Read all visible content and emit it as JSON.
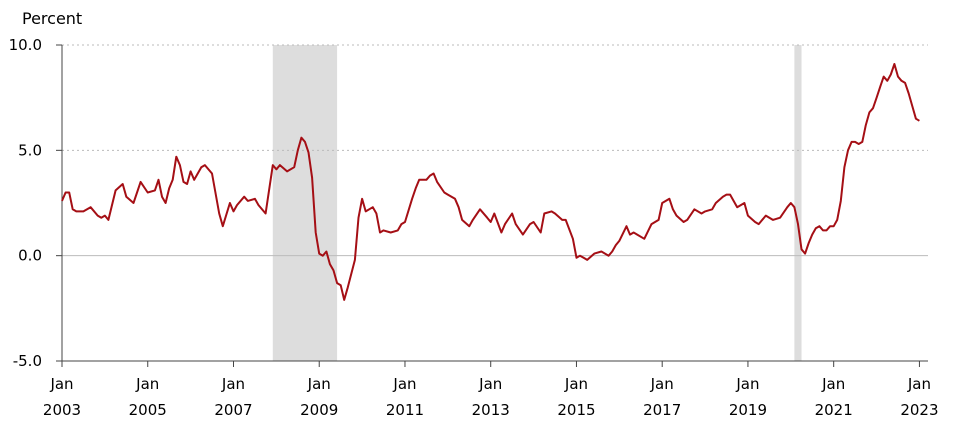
{
  "chart_data": {
    "type": "line",
    "ylabel": "Percent",
    "ylim": [
      -5.0,
      10.0
    ],
    "yticks": [
      {
        "value": -5.0,
        "label": "-5.0"
      },
      {
        "value": 0.0,
        "label": "0.0"
      },
      {
        "value": 5.0,
        "label": "5.0"
      },
      {
        "value": 10.0,
        "label": "10.0"
      }
    ],
    "xlim": [
      2003.0,
      2023.2
    ],
    "xticks": [
      {
        "value": 2003,
        "month": "Jan",
        "year": "2003"
      },
      {
        "value": 2005,
        "month": "Jan",
        "year": "2005"
      },
      {
        "value": 2007,
        "month": "Jan",
        "year": "2007"
      },
      {
        "value": 2009,
        "month": "Jan",
        "year": "2009"
      },
      {
        "value": 2011,
        "month": "Jan",
        "year": "2011"
      },
      {
        "value": 2013,
        "month": "Jan",
        "year": "2013"
      },
      {
        "value": 2015,
        "month": "Jan",
        "year": "2015"
      },
      {
        "value": 2017,
        "month": "Jan",
        "year": "2017"
      },
      {
        "value": 2019,
        "month": "Jan",
        "year": "2019"
      },
      {
        "value": 2021,
        "month": "Jan",
        "year": "2021"
      },
      {
        "value": 2023,
        "month": "Jan",
        "year": "2023"
      }
    ],
    "grid": "horizontal-dotted",
    "recessions": [
      [
        2007.917,
        2009.417
      ],
      [
        2020.083,
        2020.25
      ]
    ],
    "line_color": "#a50f15",
    "recession_color": "#dddddd",
    "series": [
      {
        "x": [
          2003.0,
          2003.083,
          2003.167,
          2003.25,
          2003.333,
          2003.5,
          2003.667,
          2003.833,
          2003.917,
          2004.0,
          2004.083,
          2004.25,
          2004.417,
          2004.5,
          2004.667,
          2004.833,
          2005.0,
          2005.167,
          2005.25,
          2005.333,
          2005.417,
          2005.5,
          2005.583,
          2005.667,
          2005.75,
          2005.833,
          2005.917,
          2006.0,
          2006.083,
          2006.25,
          2006.333,
          2006.5,
          2006.667,
          2006.75,
          2006.917,
          2007.0,
          2007.083,
          2007.25,
          2007.333,
          2007.5,
          2007.583,
          2007.75,
          2007.917,
          2008.0,
          2008.083,
          2008.25,
          2008.417,
          2008.5,
          2008.583,
          2008.667,
          2008.75,
          2008.833,
          2008.917,
          2009.0,
          2009.083,
          2009.167,
          2009.25,
          2009.333,
          2009.417,
          2009.5,
          2009.583,
          2009.667,
          2009.833,
          2009.917,
          2010.0,
          2010.083,
          2010.25,
          2010.333,
          2010.417,
          2010.5,
          2010.667,
          2010.833,
          2010.917,
          2011.0,
          2011.167,
          2011.25,
          2011.333,
          2011.417,
          2011.5,
          2011.583,
          2011.667,
          2011.75,
          2011.917,
          2012.0,
          2012.167,
          2012.25,
          2012.333,
          2012.5,
          2012.583,
          2012.75,
          2012.917,
          2013.0,
          2013.083,
          2013.25,
          2013.333,
          2013.5,
          2013.583,
          2013.75,
          2013.917,
          2014.0,
          2014.167,
          2014.25,
          2014.417,
          2014.5,
          2014.667,
          2014.75,
          2014.917,
          2015.0,
          2015.083,
          2015.167,
          2015.25,
          2015.417,
          2015.583,
          2015.75,
          2015.833,
          2015.917,
          2016.0,
          2016.167,
          2016.25,
          2016.333,
          2016.417,
          2016.583,
          2016.75,
          2016.917,
          2017.0,
          2017.167,
          2017.25,
          2017.333,
          2017.5,
          2017.583,
          2017.75,
          2017.917,
          2018.0,
          2018.167,
          2018.25,
          2018.417,
          2018.5,
          2018.583,
          2018.75,
          2018.917,
          2019.0,
          2019.167,
          2019.25,
          2019.417,
          2019.583,
          2019.75,
          2019.917,
          2020.0,
          2020.083,
          2020.167,
          2020.25,
          2020.333,
          2020.417,
          2020.5,
          2020.583,
          2020.667,
          2020.75,
          2020.833,
          2020.917,
          2021.0,
          2021.083,
          2021.167,
          2021.25,
          2021.333,
          2021.417,
          2021.5,
          2021.583,
          2021.667,
          2021.75,
          2021.833,
          2021.917,
          2022.0,
          2022.083,
          2022.167,
          2022.25,
          2022.333,
          2022.417,
          2022.5,
          2022.583,
          2022.667,
          2022.75,
          2022.833,
          2022.917,
          2023.0
        ],
        "y": [
          2.6,
          3.0,
          3.0,
          2.2,
          2.1,
          2.1,
          2.3,
          1.9,
          1.8,
          1.9,
          1.7,
          3.1,
          3.4,
          2.8,
          2.5,
          3.5,
          3.0,
          3.1,
          3.6,
          2.8,
          2.5,
          3.2,
          3.6,
          4.7,
          4.3,
          3.5,
          3.4,
          4.0,
          3.6,
          4.2,
          4.3,
          3.9,
          2.0,
          1.4,
          2.5,
          2.1,
          2.4,
          2.8,
          2.6,
          2.7,
          2.4,
          2.0,
          4.3,
          4.1,
          4.3,
          4.0,
          4.2,
          5.0,
          5.6,
          5.4,
          4.9,
          3.7,
          1.1,
          0.1,
          0.0,
          0.2,
          -0.4,
          -0.7,
          -1.3,
          -1.4,
          -2.1,
          -1.5,
          -0.2,
          1.8,
          2.7,
          2.1,
          2.3,
          2.0,
          1.1,
          1.2,
          1.1,
          1.2,
          1.5,
          1.6,
          2.7,
          3.2,
          3.6,
          3.6,
          3.6,
          3.8,
          3.9,
          3.5,
          3.0,
          2.9,
          2.7,
          2.3,
          1.7,
          1.4,
          1.7,
          2.2,
          1.8,
          1.6,
          2.0,
          1.1,
          1.5,
          2.0,
          1.5,
          1.0,
          1.5,
          1.6,
          1.1,
          2.0,
          2.1,
          2.0,
          1.7,
          1.7,
          0.8,
          -0.1,
          0.0,
          -0.1,
          -0.2,
          0.1,
          0.2,
          0.0,
          0.2,
          0.5,
          0.7,
          1.4,
          1.0,
          1.1,
          1.0,
          0.8,
          1.5,
          1.7,
          2.5,
          2.7,
          2.2,
          1.9,
          1.6,
          1.7,
          2.2,
          2.0,
          2.1,
          2.2,
          2.5,
          2.8,
          2.9,
          2.9,
          2.3,
          2.5,
          1.9,
          1.6,
          1.5,
          1.9,
          1.7,
          1.8,
          2.3,
          2.5,
          2.3,
          1.5,
          0.3,
          0.1,
          0.6,
          1.0,
          1.3,
          1.4,
          1.2,
          1.2,
          1.4,
          1.4,
          1.7,
          2.6,
          4.2,
          5.0,
          5.4,
          5.4,
          5.3,
          5.4,
          6.2,
          6.8,
          7.0,
          7.5,
          8.0,
          8.5,
          8.3,
          8.6,
          9.1,
          8.5,
          8.3,
          8.2,
          7.7,
          7.1,
          6.5,
          6.4
        ]
      }
    ]
  }
}
